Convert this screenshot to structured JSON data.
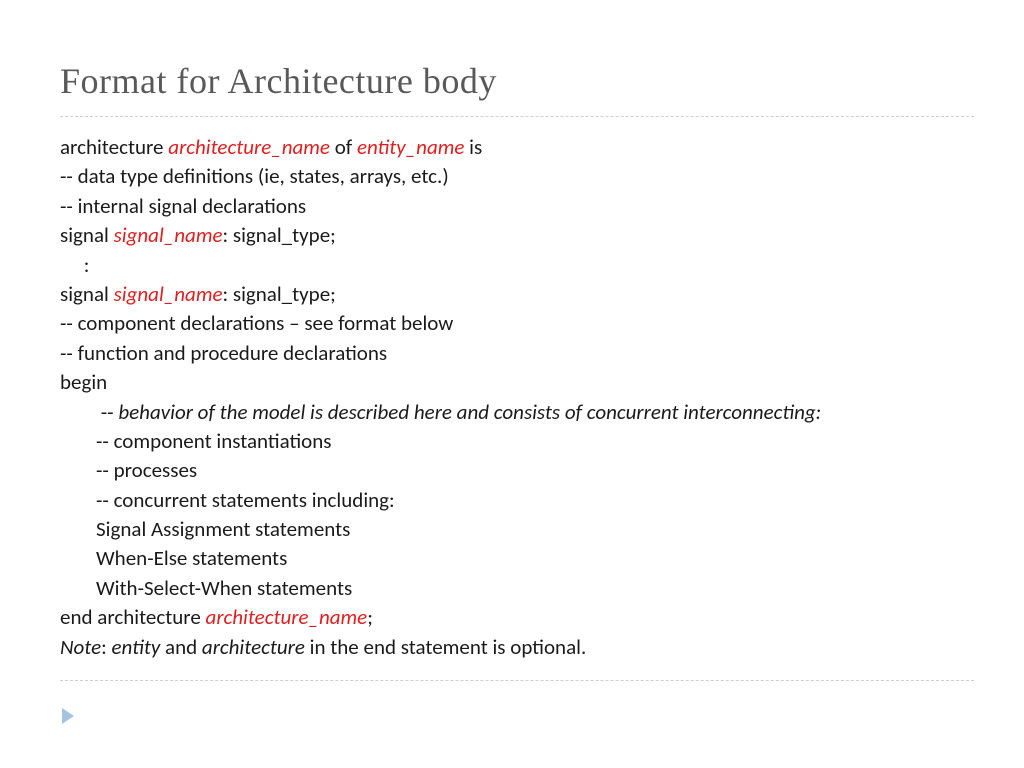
{
  "title": "Format for Architecture body",
  "lines": {
    "l1a": "architecture ",
    "l1b": "architecture_name",
    "l1c": " of ",
    "l1d": "entity_name",
    "l1e": " is",
    "l2": "-- data type definitions (ie, states, arrays, etc.)",
    "l3": "-- internal signal declarations",
    "l4a": "signal ",
    "l4b": "signal_name",
    "l4c": ": signal_type;",
    "l5": "     :",
    "l6a": "signal ",
    "l6b": "signal_name",
    "l6c": ": signal_type;",
    "l7": "-- component declarations – see format below",
    "l8": "-- function and procedure declarations",
    "l9": "begin",
    "l10a": " -- ",
    "l10b": "behavior of the model is described here and consists of concurrent interconnecting:",
    "l11": "-- component instantiations",
    "l12": "-- processes",
    "l13": "-- concurrent statements including:",
    "l14": "Signal Assignment statements",
    "l15": "When-Else statements",
    "l16": "With-Select-When statements",
    "l17a": "end architecture ",
    "l17b": "architecture_name",
    "l17c": ";",
    "l18a": "Note",
    "l18b": ": ",
    "l18c": "entity",
    "l18d": " and ",
    "l18e": "architecture",
    "l18f": " in the end statement is optional."
  }
}
